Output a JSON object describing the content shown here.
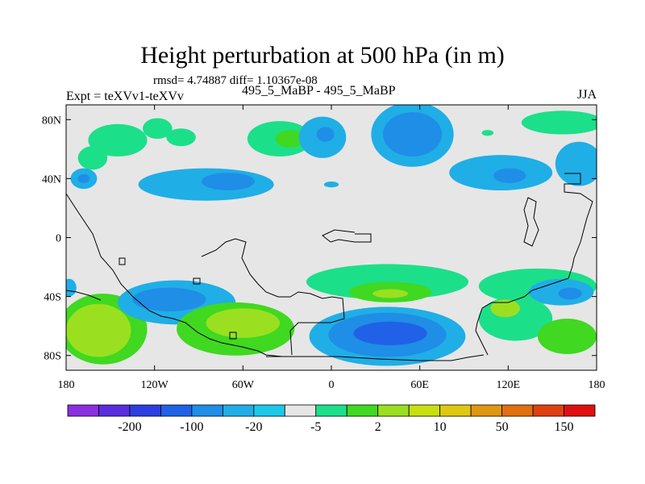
{
  "chart_data": {
    "type": "heatmap",
    "title": "Height perturbation at 500 hPa (in m)",
    "stats_label": "rmsd= 4.74887 diff= 1.10367e-08",
    "left_label": "Expt = teXVv1-teXVv",
    "center_label": "495_5_MaBP - 495_5_MaBP",
    "right_label": "JJA",
    "xlabel": "",
    "ylabel": "",
    "xlim": [
      -180,
      180
    ],
    "ylim": [
      -90,
      90
    ],
    "x_ticks": [
      {
        "value": -180,
        "label": "180"
      },
      {
        "value": -120,
        "label": "120W"
      },
      {
        "value": -60,
        "label": "60W"
      },
      {
        "value": 0,
        "label": "0"
      },
      {
        "value": 60,
        "label": "60E"
      },
      {
        "value": 120,
        "label": "120E"
      },
      {
        "value": 180,
        "label": "180"
      }
    ],
    "y_ticks": [
      {
        "value": 80,
        "label": "80N"
      },
      {
        "value": 40,
        "label": "40N"
      },
      {
        "value": 0,
        "label": "0"
      },
      {
        "value": -40,
        "label": "40S"
      },
      {
        "value": -80,
        "label": "80S"
      }
    ],
    "colorbar": {
      "colors": [
        "#8c2fe0",
        "#5a2ee0",
        "#2c3fe0",
        "#2061e8",
        "#1f8ee6",
        "#20aee6",
        "#1cc8e8",
        "#e6e6e6",
        "#1cdf8a",
        "#40d820",
        "#9ae020",
        "#c8e010",
        "#e0c810",
        "#e09810",
        "#e07010",
        "#e04010",
        "#e01010"
      ],
      "labels": [
        "-200",
        "-100",
        "-20",
        "-5",
        "2",
        "10",
        "50",
        "150"
      ],
      "label_after_box": [
        1,
        3,
        5,
        7,
        9,
        11,
        13,
        15
      ]
    },
    "anomaly_features": [
      {
        "lon": -145,
        "lat": 66,
        "rlon": 20,
        "rlat": 11,
        "color": "#1cdf8a"
      },
      {
        "lon": -118,
        "lat": 74,
        "rlon": 10,
        "rlat": 7,
        "color": "#1cdf8a"
      },
      {
        "lon": -162,
        "lat": 54,
        "rlon": 10,
        "rlat": 8,
        "color": "#1cdf8a"
      },
      {
        "lon": -35,
        "lat": 67,
        "rlon": 22,
        "rlat": 12,
        "color": "#1cdf8a"
      },
      {
        "lon": -28,
        "lat": 67,
        "rlon": 10,
        "rlat": 6,
        "color": "#40d820"
      },
      {
        "lon": -102,
        "lat": 68,
        "rlon": 10,
        "rlat": 6,
        "color": "#1cdf8a"
      },
      {
        "lon": -168,
        "lat": 40,
        "rlon": 9,
        "rlat": 7,
        "color": "#20aee6"
      },
      {
        "lon": -168,
        "lat": 40,
        "rlon": 4,
        "rlat": 3,
        "color": "#1f8ee6"
      },
      {
        "lon": -85,
        "lat": 36,
        "rlon": 46,
        "rlat": 11,
        "color": "#20aee6"
      },
      {
        "lon": -70,
        "lat": 38,
        "rlon": 18,
        "rlat": 6,
        "color": "#1f8ee6"
      },
      {
        "lon": 0,
        "lat": 36,
        "rlon": 5,
        "rlat": 2,
        "color": "#20aee6"
      },
      {
        "lon": -6,
        "lat": 68,
        "rlon": 16,
        "rlat": 14,
        "color": "#20aee6"
      },
      {
        "lon": -4,
        "lat": 70,
        "rlon": 6,
        "rlat": 5,
        "color": "#1f8ee6"
      },
      {
        "lon": 55,
        "lat": 70,
        "rlon": 28,
        "rlat": 22,
        "color": "#20aee6"
      },
      {
        "lon": 55,
        "lat": 70,
        "rlon": 20,
        "rlat": 15,
        "color": "#1f8ee6"
      },
      {
        "lon": 115,
        "lat": 44,
        "rlon": 35,
        "rlat": 12,
        "color": "#20aee6"
      },
      {
        "lon": 121,
        "lat": 42,
        "rlon": 11,
        "rlat": 5,
        "color": "#1f8ee6"
      },
      {
        "lon": 168,
        "lat": 50,
        "rlon": 16,
        "rlat": 15,
        "color": "#20aee6"
      },
      {
        "lon": 157,
        "lat": 78,
        "rlon": 28,
        "rlat": 8,
        "color": "#1cdf8a"
      },
      {
        "lon": 106,
        "lat": 71,
        "rlon": 4,
        "rlat": 2,
        "color": "#1cdf8a"
      },
      {
        "lon": 38,
        "lat": -30,
        "rlon": 55,
        "rlat": 12,
        "color": "#1cdf8a"
      },
      {
        "lon": 40,
        "lat": -37,
        "rlon": 28,
        "rlat": 7,
        "color": "#40d820"
      },
      {
        "lon": 40,
        "lat": -38,
        "rlon": 12,
        "rlat": 3,
        "color": "#9ae020"
      },
      {
        "lon": 38,
        "lat": -67,
        "rlon": 53,
        "rlat": 20,
        "color": "#20aee6"
      },
      {
        "lon": 38,
        "lat": -66,
        "rlon": 40,
        "rlat": 15,
        "color": "#1f8ee6"
      },
      {
        "lon": 40,
        "lat": -65,
        "rlon": 25,
        "rlat": 8,
        "color": "#2061e8"
      },
      {
        "lon": 140,
        "lat": -33,
        "rlon": 40,
        "rlat": 12,
        "color": "#1cdf8a"
      },
      {
        "lon": 156,
        "lat": -37,
        "rlon": 22,
        "rlat": 9,
        "color": "#20aee6"
      },
      {
        "lon": 162,
        "lat": -38,
        "rlon": 8,
        "rlat": 4,
        "color": "#1f8ee6"
      },
      {
        "lon": 125,
        "lat": -55,
        "rlon": 25,
        "rlat": 15,
        "color": "#1cdf8a"
      },
      {
        "lon": 118,
        "lat": -48,
        "rlon": 10,
        "rlat": 6,
        "color": "#9ae020"
      },
      {
        "lon": 160,
        "lat": -67,
        "rlon": 20,
        "rlat": 12,
        "color": "#40d820"
      },
      {
        "lon": -155,
        "lat": -62,
        "rlon": 30,
        "rlat": 24,
        "color": "#40d820"
      },
      {
        "lon": -158,
        "lat": -63,
        "rlon": 22,
        "rlat": 18,
        "color": "#9ae020"
      },
      {
        "lon": -105,
        "lat": -44,
        "rlon": 40,
        "rlat": 15,
        "color": "#20aee6"
      },
      {
        "lon": -110,
        "lat": -42,
        "rlon": 25,
        "rlat": 8,
        "color": "#1f8ee6"
      },
      {
        "lon": -65,
        "lat": -62,
        "rlon": 40,
        "rlat": 18,
        "color": "#40d820"
      },
      {
        "lon": -60,
        "lat": -58,
        "rlon": 25,
        "rlat": 10,
        "color": "#9ae020"
      },
      {
        "lon": -178,
        "lat": -34,
        "rlon": 5,
        "rlat": 6,
        "color": "#20aee6"
      }
    ]
  }
}
